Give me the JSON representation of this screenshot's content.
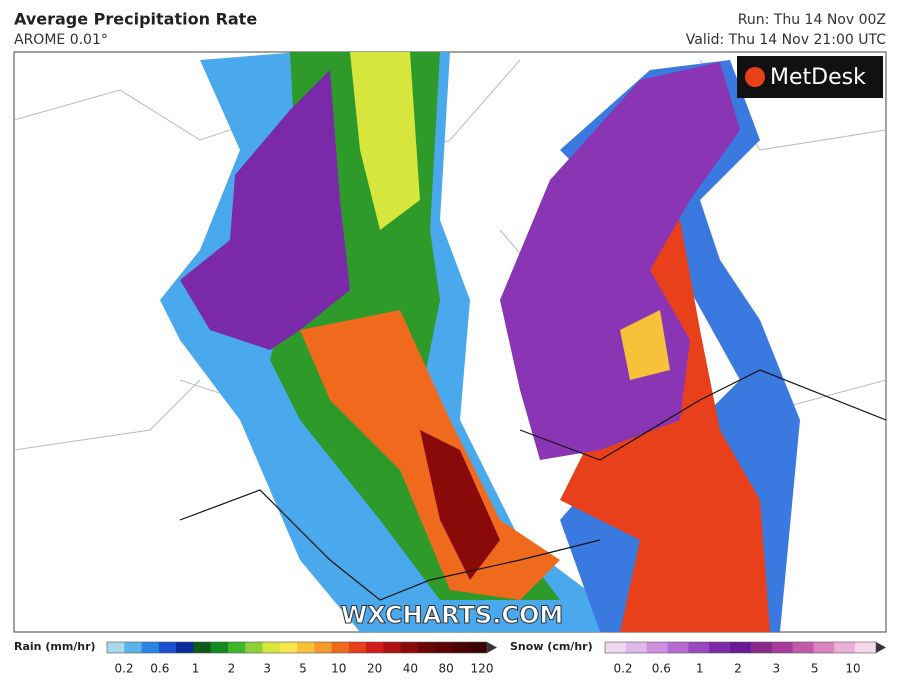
{
  "header": {
    "title": "Average Precipitation Rate",
    "subtitle": "AROME 0.01°",
    "run": "Run: Thu 14 Nov 00Z",
    "valid": "Valid: Thu 14 Nov 21:00 UTC"
  },
  "logo": "MetDesk",
  "watermark": "WXCHARTS.COM",
  "legend": {
    "rain": {
      "label": "Rain (mm/hr)",
      "ticks": [
        0.2,
        0.6,
        1,
        2,
        3,
        5,
        10,
        20,
        40,
        80,
        120
      ],
      "colors": [
        "#a8d8ea",
        "#5ab4e8",
        "#2a86e0",
        "#1a4fd0",
        "#0a2a9a",
        "#0a5a1a",
        "#138a1e",
        "#3cb82a",
        "#8ed03a",
        "#d6e63c",
        "#f6e64a",
        "#f6c23a",
        "#f69a2a",
        "#f06a1e",
        "#e8401a",
        "#d41a1a",
        "#b01010",
        "#8a0a0a",
        "#6a0606",
        "#5a0404",
        "#4a0202",
        "#3a0202"
      ]
    },
    "snow": {
      "label": "Snow (cm/hr)",
      "ticks": [
        0.2,
        0.6,
        1,
        2,
        3,
        5,
        10
      ],
      "colors": [
        "#f0d8f0",
        "#e0b8ea",
        "#cc90de",
        "#b46ad0",
        "#9a48c0",
        "#7e2aa8",
        "#681a96",
        "#8a2a8a",
        "#a83a9a",
        "#c25aaa",
        "#d884c0",
        "#eab0d8",
        "#f6d8ec"
      ]
    }
  }
}
